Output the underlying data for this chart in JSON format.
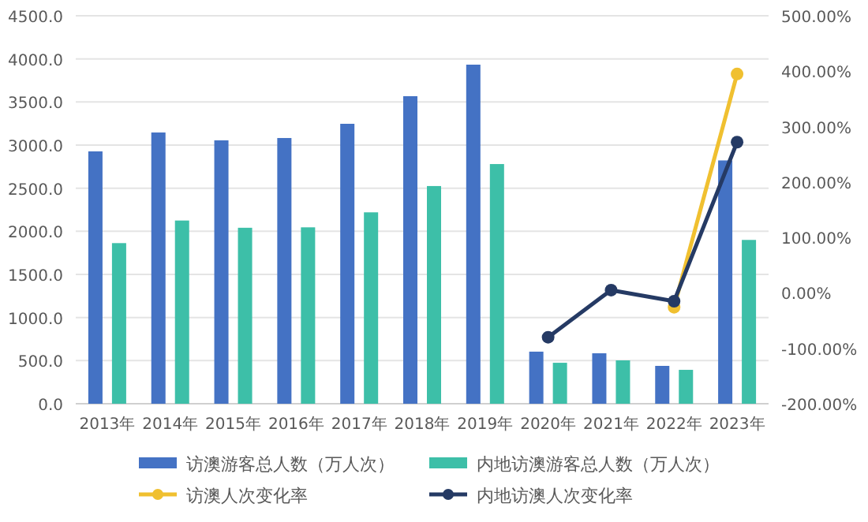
{
  "chart_data": {
    "type": "bar",
    "categories": [
      "2013年",
      "2014年",
      "2015年",
      "2016年",
      "2017年",
      "2018年",
      "2019年",
      "2020年",
      "2021年",
      "2022年",
      "2023年"
    ],
    "series": [
      {
        "name": "访澳游客总人数（万人次）",
        "color": "#4472c4",
        "values": [
          2927,
          3146,
          3055,
          3082,
          3247,
          3567,
          3933,
          604,
          585,
          439,
          2822
        ]
      },
      {
        "name": "内地访澳游客总人数（万人次）",
        "color": "#3dbfa8",
        "values": [
          1863,
          2125,
          2041,
          2046,
          2220,
          2525,
          2780,
          475,
          503,
          393,
          1900
        ]
      },
      {
        "name": "访澳人次变化率",
        "type": "line",
        "axis": "y2",
        "color": "#f0c030",
        "marker": "circle",
        "values": [
          null,
          null,
          null,
          null,
          null,
          null,
          null,
          null,
          null,
          -26,
          395
        ]
      },
      {
        "name": "内地访澳人次变化率",
        "type": "line",
        "axis": "y2",
        "color": "#253a64",
        "marker": "circle",
        "values": [
          null,
          null,
          null,
          null,
          null,
          null,
          null,
          -80,
          5,
          -15,
          272
        ]
      }
    ],
    "ylim": [
      0,
      4500
    ],
    "yticks": [
      {
        "value": 0,
        "label": "0.0"
      },
      {
        "value": 500,
        "label": "500.0"
      },
      {
        "value": 1000,
        "label": "1000.0"
      },
      {
        "value": 1500,
        "label": "1500.0"
      },
      {
        "value": 2000,
        "label": "2000.0"
      },
      {
        "value": 2500,
        "label": "2500.0"
      },
      {
        "value": 3000,
        "label": "3000.0"
      },
      {
        "value": 3500,
        "label": "3500.0"
      },
      {
        "value": 4000,
        "label": "4000.0"
      },
      {
        "value": 4500,
        "label": "4500.0"
      }
    ],
    "y2lim": [
      -200,
      500
    ],
    "y2ticks": [
      {
        "value": -200,
        "label": "-200.00%"
      },
      {
        "value": -100,
        "label": "-100.00%"
      },
      {
        "value": 0,
        "label": "0.00%"
      },
      {
        "value": 100,
        "label": "100.00%"
      },
      {
        "value": 200,
        "label": "200.00%"
      },
      {
        "value": 300,
        "label": "300.00%"
      },
      {
        "value": 400,
        "label": "400.00%"
      },
      {
        "value": 500,
        "label": "500.00%"
      }
    ],
    "grid": "y",
    "legend": "bottom"
  }
}
